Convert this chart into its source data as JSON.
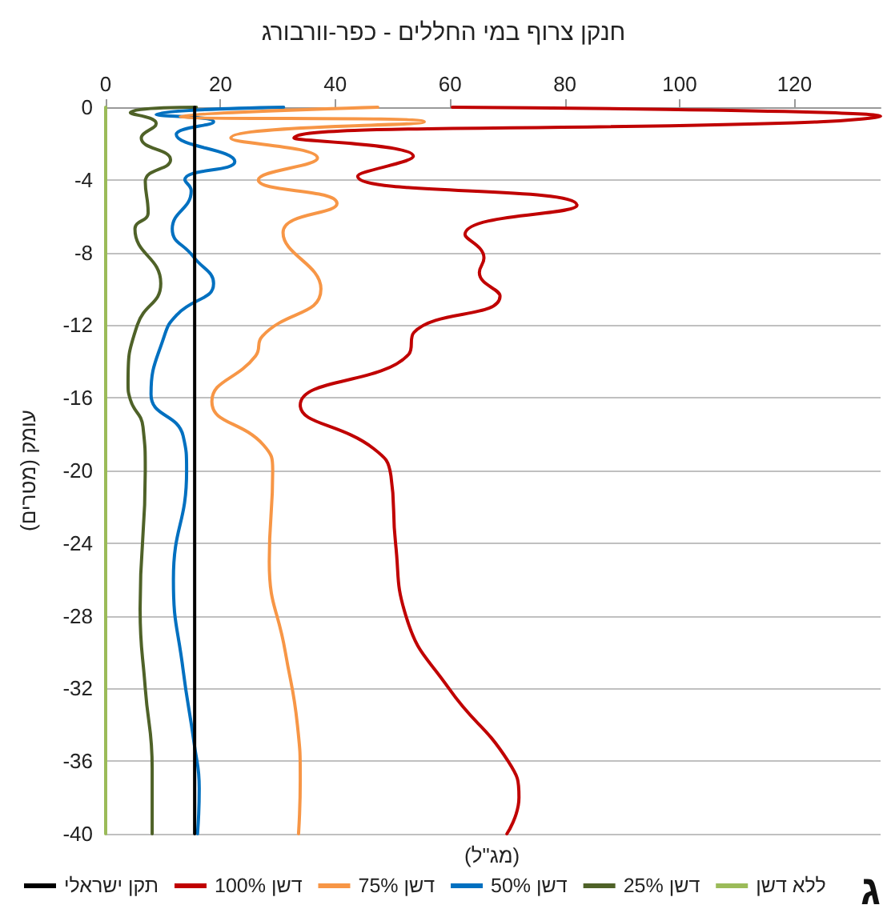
{
  "chart_data": {
    "type": "line",
    "title": "חנקן צרוף במי החללים - כפר-וורבורג",
    "xlabel": "(מג\"ל)",
    "ylabel": "עומק (מטרים)",
    "xlim": [
      0,
      135
    ],
    "xticks": [
      0,
      20,
      40,
      60,
      80,
      100,
      120
    ],
    "ylim": [
      -40,
      0
    ],
    "yticks": [
      0,
      -4,
      -8,
      -12,
      -16,
      -20,
      -24,
      -28,
      -32,
      -36,
      -40
    ],
    "grid": "y",
    "legend": "bottom",
    "annotations": [
      "ג"
    ],
    "series": [
      {
        "name": "תקן ישראלי",
        "color": "#000000",
        "x": [
          15.5,
          15.5
        ],
        "values": [
          0,
          -40
        ]
      },
      {
        "name": "דשן 100%",
        "color": "#c00000",
        "x": [
          60.4,
          135,
          124.4,
          32.8,
          53.6,
          43.9,
          82.1,
          62.6,
          65.9,
          65.1,
          68.7,
          53.7,
          52.8,
          33.9,
          46.7,
          49.7,
          50.5,
          52.3,
          59.8,
          70.1,
          72,
          69.9
        ],
        "values": [
          0,
          -0.5,
          -0.8,
          -1.7,
          -2.7,
          -3.8,
          -5.4,
          -7,
          -8.3,
          -9.1,
          -10.4,
          -12.4,
          -13.6,
          -16.4,
          -18.8,
          -20.3,
          -24,
          -28,
          -32,
          -36,
          -38,
          -40
        ]
      },
      {
        "name": "דשן 75%",
        "color": "#f79646",
        "x": [
          47.4,
          13,
          55.5,
          21.8,
          36.9,
          26.6,
          40.3,
          30.9,
          37.5,
          27.3,
          26.1,
          18.5,
          27.5,
          29.1,
          28.5,
          31.3,
          33.4,
          33.9,
          33.6
        ],
        "values": [
          0,
          -0.5,
          -0.8,
          -1.7,
          -2.8,
          -4,
          -5.3,
          -6.9,
          -10,
          -12.6,
          -13.7,
          -16.2,
          -18.6,
          -20,
          -25,
          -30,
          -34,
          -37,
          -40
        ]
      },
      {
        "name": "דשן 50%",
        "color": "#0070c0",
        "x": [
          31,
          8.8,
          18.8,
          12.3,
          22.5,
          13.8,
          14.9,
          11.6,
          15.2,
          18.8,
          12.5,
          10.2,
          7.9,
          13.5,
          14.1,
          11.8,
          13.5,
          15.4,
          16.3,
          16
        ],
        "values": [
          0,
          -0.4,
          -0.8,
          -1.5,
          -3,
          -4,
          -4.6,
          -6.7,
          -8.2,
          -9.7,
          -11.4,
          -12.6,
          -15.8,
          -18.1,
          -20,
          -26,
          -31,
          -35,
          -37.5,
          -40
        ]
      },
      {
        "name": "דשן 25%",
        "color": "#4f6228",
        "x": [
          15.8,
          4.3,
          8.8,
          6.2,
          11.3,
          6.9,
          7.4,
          5.1,
          9.6,
          5.5,
          3.9,
          4.3,
          6.5,
          6.9,
          6,
          6.9,
          8.1,
          8.1
        ],
        "values": [
          0,
          -0.3,
          -0.9,
          -1.7,
          -2.9,
          -4.1,
          -5.8,
          -6.7,
          -9.7,
          -12,
          -15.2,
          -16.1,
          -17.6,
          -20,
          -27.6,
          -32,
          -36.4,
          -40
        ]
      },
      {
        "name": "ללא דשן",
        "color": "#9bbb59",
        "x": [
          0,
          0
        ],
        "values": [
          0,
          -40
        ]
      }
    ]
  }
}
